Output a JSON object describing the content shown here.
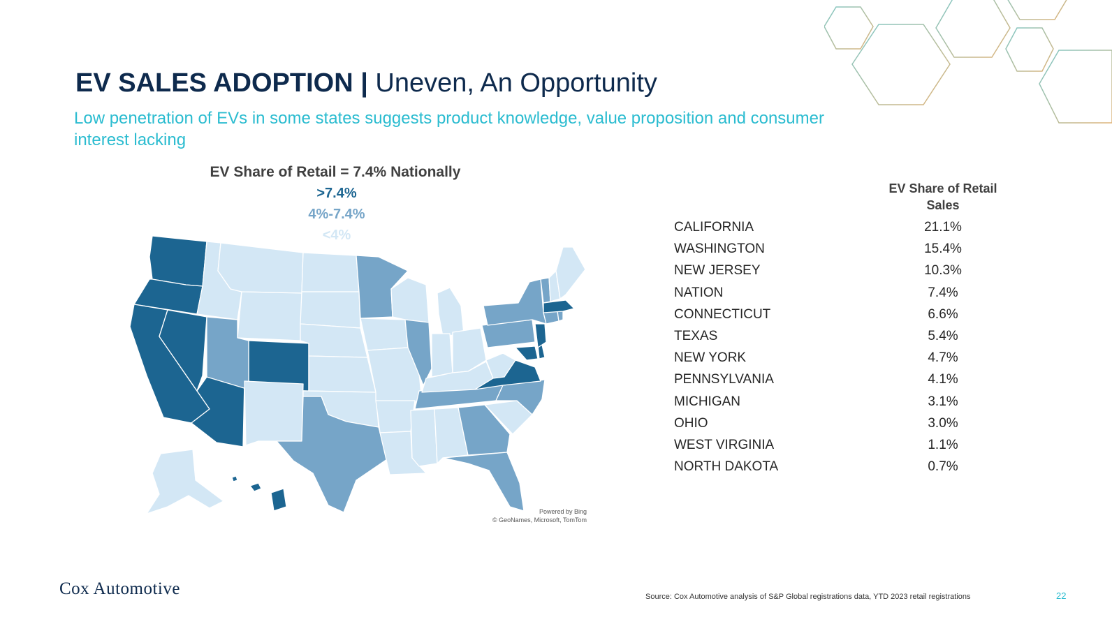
{
  "slide": {
    "title_bold": "EV SALES ADOPTION |",
    "title_rest": " Uneven, An Opportunity",
    "subtitle": "Low penetration of EVs in some states suggests product knowledge, value proposition and consumer interest lacking",
    "page_number": "22",
    "source": "Source: Cox Automotive analysis of S&P Global registrations data, YTD 2023 retail registrations",
    "logo_text": "Cox Automotive"
  },
  "map": {
    "title": "EV Share of Retail = 7.4% Nationally",
    "legend": [
      {
        "label": ">7.4%",
        "color": "#1c6591"
      },
      {
        "label": "4%-7.4%",
        "color": "#76a5c8"
      },
      {
        "label": "<4%",
        "color": "#d3e7f5"
      }
    ],
    "attribution_line1": "Powered by Bing",
    "attribution_line2": "© GeoNames, Microsoft, TomTom",
    "border_color": "#ffffff"
  },
  "table": {
    "header": "EV Share of Retail Sales",
    "rows": [
      {
        "state": "CALIFORNIA",
        "share": "21.1%"
      },
      {
        "state": "WASHINGTON",
        "share": "15.4%"
      },
      {
        "state": "NEW JERSEY",
        "share": "10.3%"
      },
      {
        "state": "NATION",
        "share": "7.4%"
      },
      {
        "state": "CONNECTICUT",
        "share": "6.6%"
      },
      {
        "state": "TEXAS",
        "share": "5.4%"
      },
      {
        "state": "NEW YORK",
        "share": "4.7%"
      },
      {
        "state": "PENNSYLVANIA",
        "share": "4.1%"
      },
      {
        "state": "MICHIGAN",
        "share": "3.1%"
      },
      {
        "state": "OHIO",
        "share": "3.0%"
      },
      {
        "state": "WEST VIRGINIA",
        "share": "1.1%"
      },
      {
        "state": "NORTH DAKOTA",
        "share": "0.7%"
      }
    ]
  },
  "colors": {
    "title": "#0e2a4d",
    "subtitle": "#2bbcd0",
    "high": "#1c6591",
    "mid": "#76a5c8",
    "low": "#d3e7f5",
    "hex_teal": "#7ec8c8",
    "hex_orange": "#e0b47a"
  }
}
